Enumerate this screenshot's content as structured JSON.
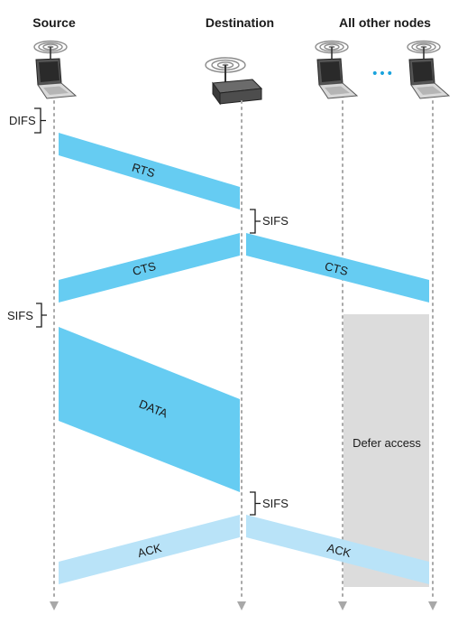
{
  "headers": {
    "source": "Source",
    "destination": "Destination",
    "others": "All other nodes"
  },
  "ellipsis": "•••",
  "intervals": {
    "difs": "DIFS",
    "sifs_1": "SIFS",
    "sifs_2": "SIFS",
    "sifs_3": "SIFS"
  },
  "messages": {
    "rts": "RTS",
    "cts_source": "CTS",
    "cts_others": "CTS",
    "data": "DATA",
    "ack_source": "ACK",
    "ack_others": "ACK"
  },
  "defer": {
    "label": "Defer access"
  },
  "colors": {
    "frame": "#66ccf2",
    "ack": "#b9e3f8",
    "defer": "#dcdcdc",
    "timeline": "#a8a8a8"
  },
  "icons": {
    "source": "laptop-icon",
    "destination": "access-point-icon",
    "other_1": "laptop-icon",
    "other_2": "laptop-icon"
  }
}
